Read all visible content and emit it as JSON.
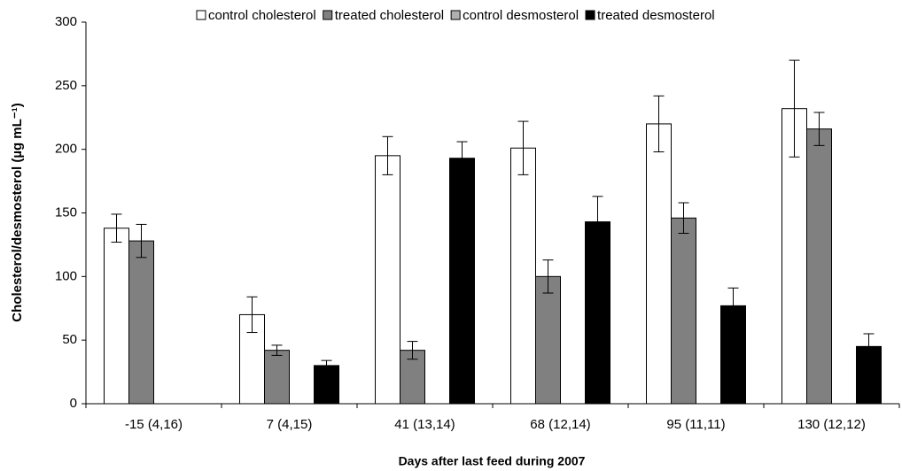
{
  "chart_data": {
    "type": "bar",
    "x_label": "Days after last feed during 2007",
    "y_label": "Cholesterol/desmosterol (µg mL⁻¹)",
    "categories": [
      "-15 (4,16)",
      "7 (4,15)",
      "41 (13,14)",
      "68 (12,14)",
      "95 (11,11)",
      "130 (12,12)"
    ],
    "series": [
      {
        "name": "control cholesterol",
        "color": "#ffffff",
        "values": [
          138,
          70,
          195,
          201,
          220,
          232
        ],
        "errors": [
          11,
          14,
          15,
          21,
          22,
          38
        ]
      },
      {
        "name": "treated cholesterol",
        "color": "#808080",
        "values": [
          128,
          42,
          42,
          100,
          146,
          216
        ],
        "errors": [
          13,
          4,
          7,
          13,
          12,
          13
        ]
      },
      {
        "name": "control desmosterol",
        "color": "#b0b0b0",
        "values": [
          0,
          0,
          0,
          0,
          0,
          0
        ]
      },
      {
        "name": "treated desmosterol",
        "color": "#000000",
        "values": [
          0,
          30,
          193,
          143,
          77,
          45
        ],
        "errors": [
          0,
          4,
          13,
          20,
          14,
          10
        ]
      }
    ],
    "ylim": [
      0,
      300
    ],
    "yticks": [
      0,
      50,
      100,
      150,
      200,
      250,
      300
    ],
    "legend": "top"
  }
}
